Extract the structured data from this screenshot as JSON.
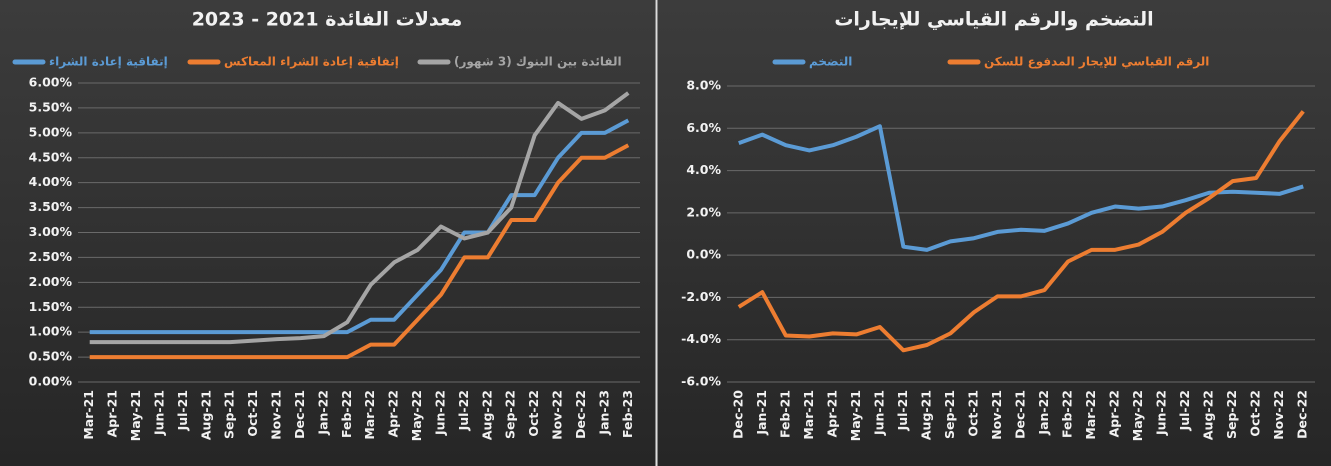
{
  "chart_data": [
    {
      "type": "line",
      "title": "معدلات الفائدة 2021 - 2023",
      "categories": [
        "Mar-21",
        "Apr-21",
        "May-21",
        "Jun-21",
        "Jul-21",
        "Aug-21",
        "Sep-21",
        "Oct-21",
        "Nov-21",
        "Dec-21",
        "Jan-22",
        "Feb-22",
        "Mar-22",
        "Apr-22",
        "May-22",
        "Jun-22",
        "Jul-22",
        "Aug-22",
        "Sep-22",
        "Oct-22",
        "Nov-22",
        "Dec-22",
        "Jan-23",
        "Feb-23"
      ],
      "series": [
        {
          "name": "إتفاقية إعادة الشراء",
          "color": "#5b9bd5",
          "values": [
            1,
            1,
            1,
            1,
            1,
            1,
            1,
            1,
            1,
            1,
            1,
            1,
            1.25,
            1.25,
            1.75,
            2.25,
            3,
            3,
            3.75,
            3.75,
            4.5,
            5,
            5,
            5.25
          ]
        },
        {
          "name": "إتفاقية إعادة الشراء المعاكس",
          "color": "#ed7d31",
          "values": [
            0.5,
            0.5,
            0.5,
            0.5,
            0.5,
            0.5,
            0.5,
            0.5,
            0.5,
            0.5,
            0.5,
            0.5,
            0.75,
            0.75,
            1.25,
            1.75,
            2.5,
            2.5,
            3.25,
            3.25,
            4,
            4.5,
            4.5,
            4.75
          ]
        },
        {
          "name": "الفائدة بين البنوك (3 شهور)",
          "color": "#a5a5a5",
          "values": [
            0.8,
            0.8,
            0.8,
            0.8,
            0.8,
            0.8,
            0.8,
            0.83,
            0.86,
            0.88,
            0.92,
            1.2,
            1.95,
            2.4,
            2.65,
            3.12,
            2.88,
            3,
            3.5,
            4.95,
            5.6,
            5.28,
            5.45,
            5.8
          ]
        }
      ],
      "ylim": [
        0,
        6
      ],
      "yticks": [
        {
          "value": 0,
          "label": "0.00%"
        },
        {
          "value": 0.5,
          "label": "0.50%"
        },
        {
          "value": 1,
          "label": "1.00%"
        },
        {
          "value": 1.5,
          "label": "1.50%"
        },
        {
          "value": 2,
          "label": "2.00%"
        },
        {
          "value": 2.5,
          "label": "2.50%"
        },
        {
          "value": 3,
          "label": "3.00%"
        },
        {
          "value": 3.5,
          "label": "3.50%"
        },
        {
          "value": 4,
          "label": "4.00%"
        },
        {
          "value": 4.5,
          "label": "4.50%"
        },
        {
          "value": 5,
          "label": "5.00%"
        },
        {
          "value": 5.5,
          "label": "5.50%"
        },
        {
          "value": 6,
          "label": "6.00%"
        }
      ],
      "grid": true
    },
    {
      "type": "line",
      "title": "التضخم والرقم القياسي للإيجارات",
      "categories": [
        "Dec-20",
        "Jan-21",
        "Feb-21",
        "Mar-21",
        "Apr-21",
        "May-21",
        "Jun-21",
        "Jul-21",
        "Aug-21",
        "Sep-21",
        "Oct-21",
        "Nov-21",
        "Dec-21",
        "Jan-22",
        "Feb-22",
        "Mar-22",
        "Apr-22",
        "May-22",
        "Jun-22",
        "Jul-22",
        "Aug-22",
        "Sep-22",
        "Oct-22",
        "Nov-22",
        "Dec-22"
      ],
      "series": [
        {
          "name": "التضخم",
          "color": "#5b9bd5",
          "values": [
            5.3,
            5.7,
            5.2,
            4.95,
            5.2,
            5.6,
            6.1,
            0.4,
            0.25,
            0.65,
            0.8,
            1.1,
            1.2,
            1.15,
            1.5,
            2,
            2.3,
            2.2,
            2.3,
            2.6,
            2.95,
            3,
            2.95,
            2.9,
            3.25
          ]
        },
        {
          "name": "الرقم القياسي للإيجار المدفوع للسكن",
          "color": "#ed7d31",
          "values": [
            -2.45,
            -1.75,
            -3.8,
            -3.85,
            -3.7,
            -3.75,
            -3.4,
            -4.5,
            -4.25,
            -3.7,
            -2.7,
            -1.95,
            -1.95,
            -1.65,
            -0.3,
            0.25,
            0.25,
            0.5,
            1.1,
            2,
            2.7,
            3.5,
            3.65,
            5.4,
            6.8
          ]
        }
      ],
      "ylim": [
        -6,
        8
      ],
      "yticks": [
        {
          "value": -6,
          "label": "-6.0%"
        },
        {
          "value": -4,
          "label": "-4.0%"
        },
        {
          "value": -2,
          "label": "-2.0%"
        },
        {
          "value": 0,
          "label": "0.0%"
        },
        {
          "value": 2,
          "label": "2.0%"
        },
        {
          "value": 4,
          "label": "4.0%"
        },
        {
          "value": 6,
          "label": "6.0%"
        },
        {
          "value": 8,
          "label": "8.0%"
        }
      ],
      "grid": true
    }
  ]
}
